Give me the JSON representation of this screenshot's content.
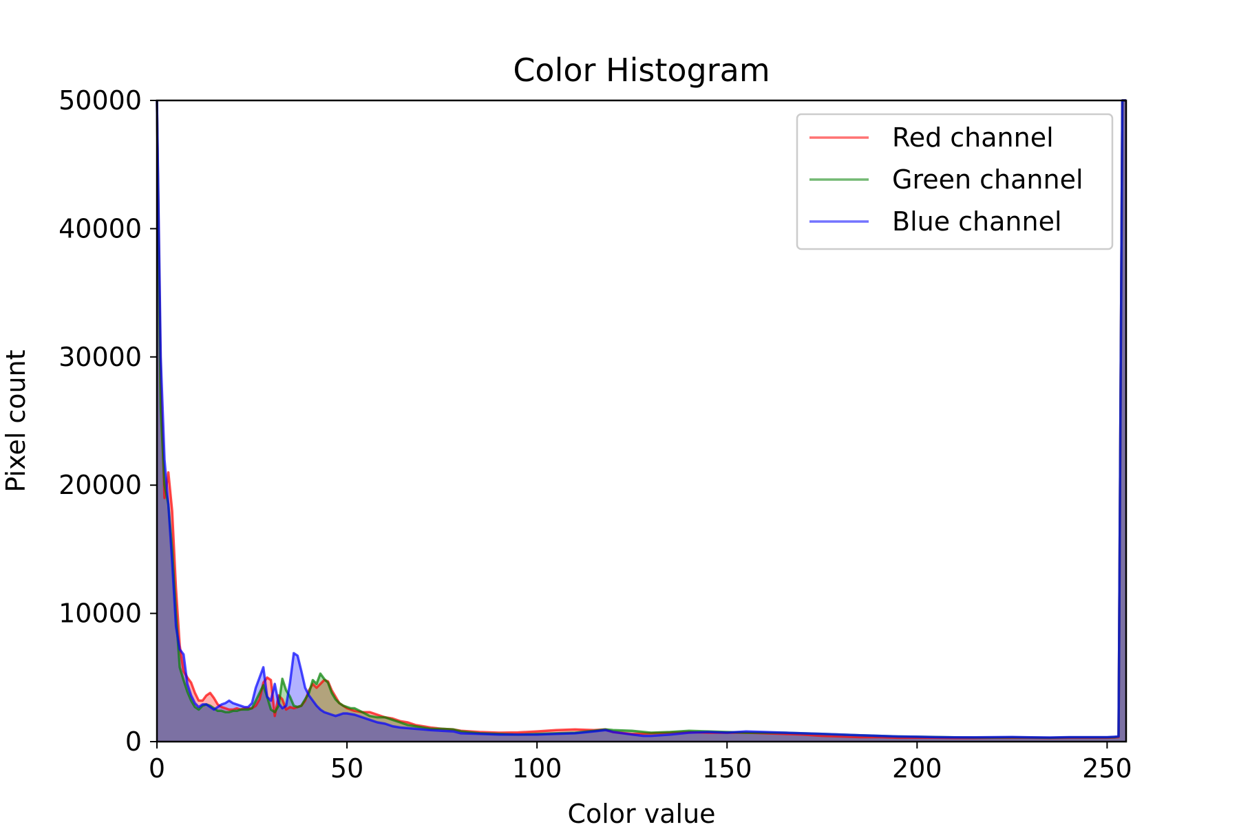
{
  "chart_data": {
    "type": "area",
    "title": "Color Histogram",
    "xlabel": "Color value",
    "ylabel": "Pixel count",
    "xlim": [
      0,
      255
    ],
    "ylim": [
      0,
      50000
    ],
    "xticks": [
      0,
      50,
      100,
      150,
      200,
      250
    ],
    "yticks": [
      0,
      10000,
      20000,
      30000,
      40000,
      50000
    ],
    "grid": false,
    "legend_position": "top-right",
    "series": [
      {
        "name": "Red channel",
        "color": "#ff0000",
        "points": [
          [
            0,
            50000
          ],
          [
            1,
            28000
          ],
          [
            2,
            19000
          ],
          [
            3,
            21000
          ],
          [
            4,
            18000
          ],
          [
            5,
            12000
          ],
          [
            6,
            7500
          ],
          [
            7,
            5500
          ],
          [
            8,
            5000
          ],
          [
            9,
            4600
          ],
          [
            10,
            3800
          ],
          [
            11,
            3200
          ],
          [
            12,
            3200
          ],
          [
            13,
            3600
          ],
          [
            14,
            3800
          ],
          [
            15,
            3400
          ],
          [
            16,
            2900
          ],
          [
            17,
            2700
          ],
          [
            18,
            2600
          ],
          [
            19,
            2500
          ],
          [
            20,
            2500
          ],
          [
            21,
            2600
          ],
          [
            22,
            2500
          ],
          [
            23,
            2600
          ],
          [
            24,
            2600
          ],
          [
            25,
            2600
          ],
          [
            26,
            2800
          ],
          [
            27,
            3300
          ],
          [
            28,
            4600
          ],
          [
            29,
            5000
          ],
          [
            30,
            4800
          ],
          [
            31,
            2000
          ],
          [
            32,
            3600
          ],
          [
            33,
            3300
          ],
          [
            34,
            2500
          ],
          [
            35,
            2700
          ],
          [
            36,
            2600
          ],
          [
            37,
            2700
          ],
          [
            38,
            2800
          ],
          [
            39,
            3200
          ],
          [
            40,
            4000
          ],
          [
            41,
            4500
          ],
          [
            42,
            4200
          ],
          [
            43,
            4500
          ],
          [
            44,
            4800
          ],
          [
            45,
            4700
          ],
          [
            46,
            4000
          ],
          [
            47,
            3500
          ],
          [
            48,
            3000
          ],
          [
            49,
            2800
          ],
          [
            50,
            2600
          ],
          [
            52,
            2400
          ],
          [
            54,
            2300
          ],
          [
            56,
            2300
          ],
          [
            58,
            2100
          ],
          [
            60,
            1900
          ],
          [
            62,
            1800
          ],
          [
            64,
            1600
          ],
          [
            66,
            1500
          ],
          [
            68,
            1300
          ],
          [
            70,
            1200
          ],
          [
            72,
            1100
          ],
          [
            75,
            1000
          ],
          [
            78,
            950
          ],
          [
            80,
            850
          ],
          [
            85,
            750
          ],
          [
            90,
            700
          ],
          [
            95,
            720
          ],
          [
            100,
            800
          ],
          [
            105,
            900
          ],
          [
            110,
            950
          ],
          [
            115,
            900
          ],
          [
            118,
            950
          ],
          [
            120,
            750
          ],
          [
            125,
            600
          ],
          [
            130,
            650
          ],
          [
            135,
            700
          ],
          [
            140,
            750
          ],
          [
            145,
            700
          ],
          [
            150,
            700
          ],
          [
            155,
            700
          ],
          [
            160,
            650
          ],
          [
            165,
            600
          ],
          [
            170,
            550
          ],
          [
            175,
            450
          ],
          [
            180,
            400
          ],
          [
            185,
            350
          ],
          [
            190,
            350
          ],
          [
            195,
            300
          ],
          [
            200,
            300
          ],
          [
            205,
            300
          ],
          [
            210,
            280
          ],
          [
            215,
            280
          ],
          [
            220,
            300
          ],
          [
            225,
            300
          ],
          [
            230,
            300
          ],
          [
            235,
            280
          ],
          [
            240,
            300
          ],
          [
            245,
            300
          ],
          [
            250,
            300
          ],
          [
            252,
            320
          ],
          [
            253,
            350
          ],
          [
            254,
            50000
          ],
          [
            255,
            50000
          ]
        ]
      },
      {
        "name": "Green channel",
        "color": "#008000",
        "points": [
          [
            0,
            50000
          ],
          [
            1,
            26000
          ],
          [
            2,
            20000
          ],
          [
            3,
            18500
          ],
          [
            4,
            15000
          ],
          [
            5,
            10000
          ],
          [
            6,
            5800
          ],
          [
            7,
            4800
          ],
          [
            8,
            3900
          ],
          [
            9,
            3200
          ],
          [
            10,
            2700
          ],
          [
            11,
            2500
          ],
          [
            12,
            2800
          ],
          [
            13,
            2900
          ],
          [
            14,
            2800
          ],
          [
            15,
            2600
          ],
          [
            16,
            2400
          ],
          [
            17,
            2400
          ],
          [
            18,
            2300
          ],
          [
            19,
            2300
          ],
          [
            20,
            2400
          ],
          [
            21,
            2400
          ],
          [
            22,
            2500
          ],
          [
            23,
            2500
          ],
          [
            24,
            2500
          ],
          [
            25,
            2600
          ],
          [
            26,
            3200
          ],
          [
            27,
            3800
          ],
          [
            28,
            4400
          ],
          [
            29,
            3500
          ],
          [
            30,
            2500
          ],
          [
            31,
            2300
          ],
          [
            32,
            2800
          ],
          [
            33,
            4900
          ],
          [
            34,
            4000
          ],
          [
            35,
            3500
          ],
          [
            36,
            2800
          ],
          [
            37,
            2700
          ],
          [
            38,
            2800
          ],
          [
            39,
            3300
          ],
          [
            40,
            3800
          ],
          [
            41,
            4800
          ],
          [
            42,
            4500
          ],
          [
            43,
            5300
          ],
          [
            44,
            4900
          ],
          [
            45,
            4600
          ],
          [
            46,
            3800
          ],
          [
            47,
            3300
          ],
          [
            48,
            3000
          ],
          [
            49,
            2800
          ],
          [
            50,
            2700
          ],
          [
            51,
            2600
          ],
          [
            52,
            2600
          ],
          [
            54,
            2300
          ],
          [
            56,
            2000
          ],
          [
            58,
            1900
          ],
          [
            60,
            1900
          ],
          [
            62,
            1700
          ],
          [
            64,
            1500
          ],
          [
            66,
            1300
          ],
          [
            68,
            1200
          ],
          [
            70,
            1100
          ],
          [
            72,
            1000
          ],
          [
            75,
            1000
          ],
          [
            78,
            950
          ],
          [
            80,
            800
          ],
          [
            85,
            650
          ],
          [
            90,
            600
          ],
          [
            95,
            550
          ],
          [
            100,
            600
          ],
          [
            105,
            650
          ],
          [
            110,
            700
          ],
          [
            115,
            850
          ],
          [
            118,
            950
          ],
          [
            120,
            900
          ],
          [
            125,
            850
          ],
          [
            130,
            700
          ],
          [
            135,
            750
          ],
          [
            140,
            850
          ],
          [
            145,
            800
          ],
          [
            150,
            750
          ],
          [
            155,
            700
          ],
          [
            160,
            700
          ],
          [
            165,
            700
          ],
          [
            170,
            650
          ],
          [
            175,
            600
          ],
          [
            180,
            550
          ],
          [
            185,
            500
          ],
          [
            190,
            450
          ],
          [
            195,
            400
          ],
          [
            200,
            380
          ],
          [
            205,
            360
          ],
          [
            210,
            330
          ],
          [
            215,
            320
          ],
          [
            220,
            320
          ],
          [
            225,
            330
          ],
          [
            230,
            320
          ],
          [
            235,
            300
          ],
          [
            240,
            330
          ],
          [
            245,
            330
          ],
          [
            250,
            330
          ],
          [
            252,
            350
          ],
          [
            253,
            400
          ],
          [
            254,
            50000
          ],
          [
            255,
            50000
          ]
        ]
      },
      {
        "name": "Blue channel",
        "color": "#0000ff",
        "points": [
          [
            0,
            50000
          ],
          [
            1,
            30000
          ],
          [
            2,
            22000
          ],
          [
            3,
            18500
          ],
          [
            4,
            14000
          ],
          [
            5,
            9000
          ],
          [
            6,
            7200
          ],
          [
            7,
            6800
          ],
          [
            8,
            4500
          ],
          [
            9,
            3600
          ],
          [
            10,
            3000
          ],
          [
            11,
            2700
          ],
          [
            12,
            2900
          ],
          [
            13,
            2900
          ],
          [
            14,
            2700
          ],
          [
            15,
            2500
          ],
          [
            16,
            2700
          ],
          [
            17,
            2900
          ],
          [
            18,
            3000
          ],
          [
            19,
            3200
          ],
          [
            20,
            3000
          ],
          [
            21,
            2900
          ],
          [
            22,
            2800
          ],
          [
            23,
            2700
          ],
          [
            24,
            2700
          ],
          [
            25,
            3000
          ],
          [
            26,
            4200
          ],
          [
            27,
            5000
          ],
          [
            28,
            5800
          ],
          [
            29,
            3500
          ],
          [
            30,
            3200
          ],
          [
            31,
            4500
          ],
          [
            32,
            3000
          ],
          [
            33,
            2600
          ],
          [
            34,
            2800
          ],
          [
            35,
            4600
          ],
          [
            36,
            6900
          ],
          [
            37,
            6700
          ],
          [
            38,
            5500
          ],
          [
            39,
            4200
          ],
          [
            40,
            3600
          ],
          [
            41,
            3200
          ],
          [
            42,
            2800
          ],
          [
            43,
            2500
          ],
          [
            44,
            2300
          ],
          [
            45,
            2200
          ],
          [
            46,
            2100
          ],
          [
            47,
            2000
          ],
          [
            48,
            2100
          ],
          [
            49,
            2200
          ],
          [
            50,
            2200
          ],
          [
            52,
            2100
          ],
          [
            54,
            1900
          ],
          [
            56,
            1700
          ],
          [
            58,
            1500
          ],
          [
            60,
            1400
          ],
          [
            62,
            1200
          ],
          [
            64,
            1100
          ],
          [
            66,
            1050
          ],
          [
            68,
            1000
          ],
          [
            70,
            950
          ],
          [
            72,
            900
          ],
          [
            75,
            850
          ],
          [
            78,
            800
          ],
          [
            80,
            650
          ],
          [
            85,
            600
          ],
          [
            90,
            550
          ],
          [
            95,
            550
          ],
          [
            100,
            550
          ],
          [
            105,
            600
          ],
          [
            110,
            650
          ],
          [
            115,
            800
          ],
          [
            118,
            900
          ],
          [
            120,
            750
          ],
          [
            125,
            550
          ],
          [
            128,
            450
          ],
          [
            130,
            450
          ],
          [
            135,
            550
          ],
          [
            140,
            700
          ],
          [
            145,
            750
          ],
          [
            150,
            700
          ],
          [
            155,
            800
          ],
          [
            160,
            750
          ],
          [
            165,
            700
          ],
          [
            170,
            650
          ],
          [
            175,
            600
          ],
          [
            180,
            550
          ],
          [
            185,
            500
          ],
          [
            190,
            450
          ],
          [
            195,
            400
          ],
          [
            200,
            380
          ],
          [
            205,
            350
          ],
          [
            210,
            330
          ],
          [
            215,
            330
          ],
          [
            220,
            350
          ],
          [
            225,
            360
          ],
          [
            230,
            340
          ],
          [
            235,
            320
          ],
          [
            240,
            350
          ],
          [
            245,
            350
          ],
          [
            250,
            350
          ],
          [
            252,
            380
          ],
          [
            253,
            400
          ],
          [
            254,
            50000
          ],
          [
            255,
            50000
          ]
        ]
      }
    ]
  }
}
